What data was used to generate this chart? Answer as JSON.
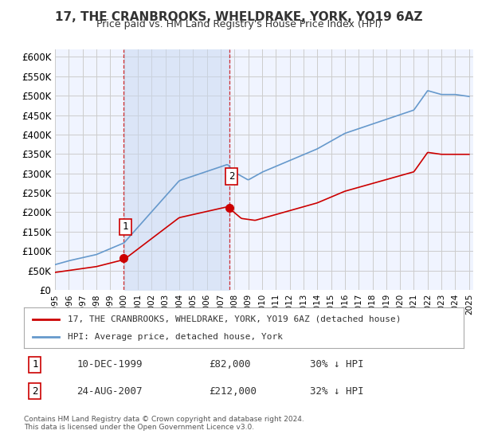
{
  "title1": "17, THE CRANBROOKS, WHELDRAKE, YORK, YO19 6AZ",
  "title2": "Price paid vs. HM Land Registry's House Price Index (HPI)",
  "xlabel": "",
  "ylabel": "",
  "ylim": [
    0,
    600000
  ],
  "yticks": [
    0,
    50000,
    100000,
    150000,
    200000,
    250000,
    300000,
    350000,
    400000,
    450000,
    500000,
    550000,
    600000
  ],
  "ytick_labels": [
    "£0",
    "£50K",
    "£100K",
    "£150K",
    "£200K",
    "£250K",
    "£300K",
    "£350K",
    "£400K",
    "£450K",
    "£500K",
    "£550K",
    "£600K"
  ],
  "xlim_start": 1995.0,
  "xlim_end": 2025.3,
  "bg_color": "#f0f4ff",
  "plot_bg_color": "#f0f4ff",
  "grid_color": "#cccccc",
  "hpi_color": "#6699cc",
  "price_color": "#cc0000",
  "sale1_x": 1999.94,
  "sale1_y": 82000,
  "sale1_label": "1",
  "sale2_x": 2007.65,
  "sale2_y": 212000,
  "sale2_label": "2",
  "legend_line1": "17, THE CRANBROOKS, WHELDRAKE, YORK, YO19 6AZ (detached house)",
  "legend_line2": "HPI: Average price, detached house, York",
  "table_row1_num": "1",
  "table_row1_date": "10-DEC-1999",
  "table_row1_price": "£82,000",
  "table_row1_hpi": "30% ↓ HPI",
  "table_row2_num": "2",
  "table_row2_date": "24-AUG-2007",
  "table_row2_price": "£212,000",
  "table_row2_hpi": "32% ↓ HPI",
  "footnote1": "Contains HM Land Registry data © Crown copyright and database right 2024.",
  "footnote2": "This data is licensed under the Open Government Licence v3.0."
}
